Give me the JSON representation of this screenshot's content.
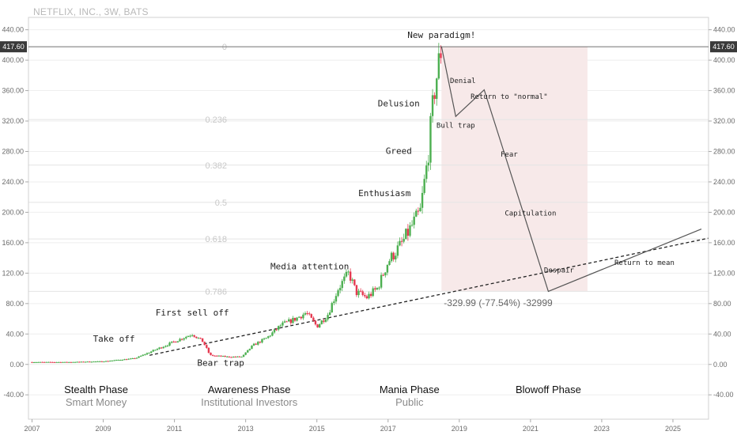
{
  "header": {
    "symbol_label": "NETFLIX, INC., 3W, BATS"
  },
  "chart_data": {
    "type": "candlestick",
    "title": "NETFLIX, INC., 3W, BATS",
    "x_ticks": [
      "2007",
      "2009",
      "2011",
      "2013",
      "2015",
      "2017",
      "2019",
      "2021",
      "2023",
      "2025"
    ],
    "x_range": [
      2006.9,
      2026.0
    ],
    "y_ticks": [
      "440.00",
      "400.00",
      "360.00",
      "320.00",
      "280.00",
      "240.00",
      "200.00",
      "160.00",
      "120.00",
      "80.00",
      "40.00",
      "0.00",
      "-40.00"
    ],
    "y_range": [
      -72,
      450
    ],
    "current_price": {
      "label": "417.60",
      "value": 417.6
    },
    "colors": {
      "up": "#4caf50",
      "down": "#e53950",
      "fib_zone": "#f7e9e9",
      "grid": "#eeeeee"
    },
    "price_path": [
      [
        2007.0,
        3
      ],
      [
        2008.0,
        3
      ],
      [
        2009.0,
        4
      ],
      [
        2009.9,
        8
      ],
      [
        2010.5,
        20
      ],
      [
        2011.0,
        30
      ],
      [
        2011.5,
        40
      ],
      [
        2011.8,
        30
      ],
      [
        2012.0,
        12
      ],
      [
        2012.5,
        10
      ],
      [
        2012.9,
        10
      ],
      [
        2013.2,
        25
      ],
      [
        2013.6,
        35
      ],
      [
        2014.0,
        52
      ],
      [
        2014.4,
        60
      ],
      [
        2014.7,
        68
      ],
      [
        2015.0,
        50
      ],
      [
        2015.3,
        65
      ],
      [
        2015.6,
        100
      ],
      [
        2015.9,
        120
      ],
      [
        2016.1,
        95
      ],
      [
        2016.4,
        88
      ],
      [
        2016.7,
        100
      ],
      [
        2017.0,
        135
      ],
      [
        2017.4,
        160
      ],
      [
        2017.7,
        185
      ],
      [
        2017.9,
        200
      ],
      [
        2018.1,
        265
      ],
      [
        2018.3,
        360
      ],
      [
        2018.5,
        418
      ]
    ],
    "fib_levels": [
      {
        "label": "0",
        "value": 418
      },
      {
        "label": "0.236",
        "value": 322
      },
      {
        "label": "0.382",
        "value": 262
      },
      {
        "label": "0.5",
        "value": 213
      },
      {
        "label": "0.618",
        "value": 165
      },
      {
        "label": "0.786",
        "value": 96
      }
    ],
    "fib_zone": {
      "x_start": 2018.5,
      "x_end": 2022.6,
      "y_top": 418,
      "y_bottom": 96
    },
    "projection_path": [
      [
        2018.5,
        418
      ],
      [
        2018.9,
        326
      ],
      [
        2019.7,
        361
      ],
      [
        2021.5,
        96
      ],
      [
        2025.8,
        178
      ]
    ],
    "trend_line": {
      "x1": 2010.3,
      "y1": 12,
      "x2": 2026.0,
      "y2": 166
    },
    "measurement": "-329.99 (-77.54%) -32999",
    "stage_labels": [
      {
        "text": "New paradigm!",
        "x": 2018.5,
        "y": 429
      },
      {
        "text": "Delusion",
        "x": 2017.3,
        "y": 339
      },
      {
        "text": "Greed",
        "x": 2017.3,
        "y": 277
      },
      {
        "text": "Enthusiasm",
        "x": 2016.9,
        "y": 221
      },
      {
        "text": "Media attention",
        "x": 2014.8,
        "y": 125
      },
      {
        "text": "First sell off",
        "x": 2011.5,
        "y": 64
      },
      {
        "text": "Take off",
        "x": 2009.3,
        "y": 30
      },
      {
        "text": "Bear trap",
        "x": 2012.3,
        "y": -2
      },
      {
        "text": "Denial",
        "x": 2019.1,
        "y": 370
      },
      {
        "text": "Return to \"normal\"",
        "x": 2020.4,
        "y": 349
      },
      {
        "text": "Bull trap",
        "x": 2018.9,
        "y": 311
      },
      {
        "text": "Fear",
        "x": 2020.4,
        "y": 273
      },
      {
        "text": "Capitulation",
        "x": 2021.0,
        "y": 196
      },
      {
        "text": "Despair",
        "x": 2021.8,
        "y": 121
      },
      {
        "text": "Return to mean",
        "x": 2024.2,
        "y": 131
      }
    ],
    "phases": [
      {
        "name": "Stealth Phase",
        "sub": "Smart Money",
        "x": 2008.8
      },
      {
        "name": "Awareness Phase",
        "sub": "Institutional Investors",
        "x": 2013.1
      },
      {
        "name": "Mania Phase",
        "sub": "Public",
        "x": 2017.6
      },
      {
        "name": "Blowoff Phase",
        "sub": "",
        "x": 2021.5
      }
    ]
  }
}
